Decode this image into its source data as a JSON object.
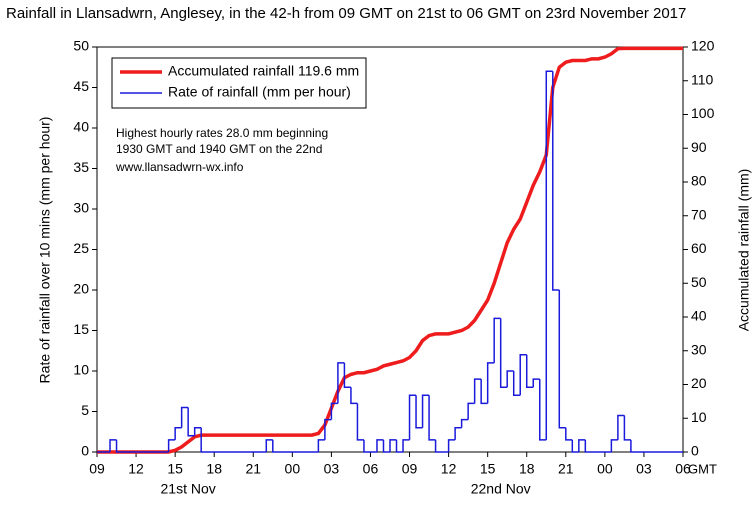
{
  "chart_data": {
    "type": "line",
    "title": "Rainfall in Llansadwrn, Anglesey, in the 42-h from 09 GMT on 21st  to 06 GMT on 23rd November 2017",
    "ylabel": "Rate of rainfall over 10 mins (mm per hour)",
    "y2label": "Accumulated rainfall (mm)",
    "xunit": "GMT",
    "day_labels": [
      {
        "value": 7,
        "label": "21st Nov"
      },
      {
        "value": 31,
        "label": "22nd Nov"
      }
    ],
    "annotations": [
      "Highest hourly rates 28.0 mm beginning",
      "1930 GMT and 1940 GMT on the 22nd",
      "www.llansadwrn-wx.info"
    ],
    "xlim": [
      0,
      45
    ],
    "xticks": [
      {
        "value": 0,
        "label": "09"
      },
      {
        "value": 3,
        "label": "12"
      },
      {
        "value": 6,
        "label": "15"
      },
      {
        "value": 9,
        "label": "18"
      },
      {
        "value": 12,
        "label": "21"
      },
      {
        "value": 15,
        "label": "00"
      },
      {
        "value": 18,
        "label": "03"
      },
      {
        "value": 21,
        "label": "06"
      },
      {
        "value": 24,
        "label": "09"
      },
      {
        "value": 27,
        "label": "12"
      },
      {
        "value": 30,
        "label": "15"
      },
      {
        "value": 33,
        "label": "18"
      },
      {
        "value": 36,
        "label": "21"
      },
      {
        "value": 39,
        "label": "00"
      },
      {
        "value": 42,
        "label": "03"
      },
      {
        "value": 45,
        "label": "06"
      }
    ],
    "ylim": [
      0,
      50
    ],
    "yticks": [
      0,
      5,
      10,
      15,
      20,
      25,
      30,
      35,
      40,
      45,
      50
    ],
    "y2lim": [
      0,
      120
    ],
    "y2ticks": [
      0,
      10,
      20,
      30,
      40,
      50,
      60,
      70,
      80,
      90,
      100,
      110,
      120
    ],
    "x": [
      0,
      0.5,
      1,
      1.5,
      2,
      2.5,
      3,
      3.5,
      4,
      4.5,
      5,
      5.5,
      6,
      6.5,
      7,
      7.5,
      8,
      8.5,
      9,
      9.5,
      10,
      10.5,
      11,
      11.5,
      12,
      12.5,
      13,
      13.5,
      14,
      14.5,
      15,
      15.5,
      16,
      16.5,
      17,
      17.5,
      18,
      18.5,
      19,
      19.5,
      20,
      20.5,
      21,
      21.5,
      22,
      22.5,
      23,
      23.5,
      24,
      24.5,
      25,
      25.5,
      26,
      26.5,
      27,
      27.5,
      28,
      28.5,
      29,
      29.5,
      30,
      30.5,
      31,
      31.5,
      32,
      32.5,
      33,
      33.5,
      34,
      34.5,
      35,
      35.5,
      36,
      36.5,
      37,
      37.5,
      38,
      38.5,
      39,
      39.5,
      40,
      40.5,
      41,
      41.5,
      42,
      42.5,
      43,
      43.5,
      44,
      44.5,
      45
    ],
    "series": [
      {
        "name": "Accumulated rainfall 119.6 mm",
        "color": "#ee1c1c",
        "axis": "y2",
        "values": [
          0,
          0,
          0,
          0,
          0,
          0,
          0,
          0,
          0,
          0,
          0,
          0,
          0.5,
          1.5,
          3,
          4.5,
          5,
          5,
          5,
          5,
          5,
          5,
          5,
          5,
          5,
          5,
          5,
          5,
          5,
          5,
          5,
          5,
          5,
          5,
          5.5,
          8,
          13,
          18,
          22,
          23,
          23.5,
          23.5,
          24,
          24.5,
          25.5,
          26,
          26.5,
          27,
          28,
          30,
          33,
          34.5,
          35,
          35,
          35,
          35.5,
          36,
          37,
          39,
          42,
          45,
          50,
          56,
          62,
          66,
          69,
          74,
          79,
          83,
          88,
          108,
          114,
          115.5,
          116,
          116,
          116,
          116.5,
          116.5,
          117,
          118,
          119.5,
          119.6,
          119.6,
          119.6,
          119.6,
          119.6,
          119.6,
          119.6,
          119.6,
          119.6,
          119.6
        ]
      },
      {
        "name": "Rate of rainfall (mm per hour)",
        "color": "#1a1adb",
        "step": true,
        "values": [
          0,
          0,
          1.5,
          0,
          0,
          0,
          0,
          0,
          0,
          0,
          0,
          1.5,
          3,
          5.5,
          2,
          3,
          0,
          0,
          0,
          0,
          0,
          0,
          0,
          0,
          0,
          0,
          1.5,
          0,
          0,
          0,
          0,
          0,
          0,
          0,
          1.5,
          4,
          6,
          11,
          8,
          6,
          1.5,
          0,
          0,
          1.5,
          0,
          1.5,
          0,
          1.5,
          7,
          3,
          7,
          1.5,
          0,
          0,
          1.5,
          3,
          4,
          6,
          9,
          6,
          11,
          16.5,
          8,
          10,
          7,
          12,
          8,
          9,
          1.5,
          47,
          20,
          3,
          1.5,
          0,
          1.5,
          0,
          0,
          0,
          0,
          1.5,
          4.5,
          1.5,
          0,
          0,
          0,
          0,
          0,
          0,
          0,
          0,
          0
        ]
      }
    ]
  }
}
